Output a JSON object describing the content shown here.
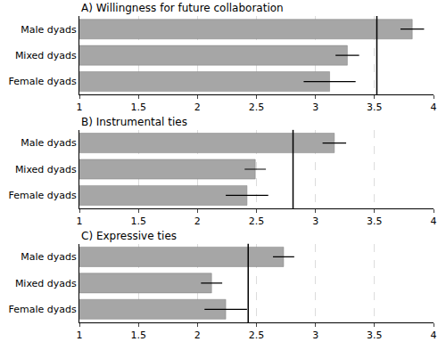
{
  "chart_data": [
    {
      "type": "bar",
      "title": "A) Willingness for future collaboration",
      "orientation": "horizontal",
      "categories": [
        "Male dyads",
        "Mixed dyads",
        "Female dyads"
      ],
      "values": [
        3.82,
        3.27,
        3.12
      ],
      "errors": [
        0.1,
        0.1,
        0.22
      ],
      "reference": 3.52,
      "xlim": [
        1,
        4
      ],
      "xticks": [
        1,
        1.5,
        2,
        2.5,
        3,
        3.5,
        4
      ],
      "color": "#a6a6a6",
      "grid": true
    },
    {
      "type": "bar",
      "title": "B) Instrumental ties",
      "orientation": "horizontal",
      "categories": [
        "Male dyads",
        "Mixed dyads",
        "Female dyads"
      ],
      "values": [
        3.16,
        2.49,
        2.42
      ],
      "errors": [
        0.1,
        0.09,
        0.18
      ],
      "reference": 2.81,
      "xlim": [
        1,
        4
      ],
      "xticks": [
        1,
        1.5,
        2,
        2.5,
        3,
        3.5,
        4
      ],
      "color": "#a6a6a6",
      "grid": true
    },
    {
      "type": "bar",
      "title": "C) Expressive ties",
      "orientation": "horizontal",
      "categories": [
        "Male dyads",
        "Mixed dyads",
        "Female dyads"
      ],
      "values": [
        2.73,
        2.12,
        2.24
      ],
      "errors": [
        0.09,
        0.09,
        0.18
      ],
      "reference": 2.43,
      "xlim": [
        1,
        4
      ],
      "xticks": [
        1,
        1.5,
        2,
        2.5,
        3,
        3.5,
        4
      ],
      "color": "#a6a6a6",
      "grid": true
    }
  ]
}
